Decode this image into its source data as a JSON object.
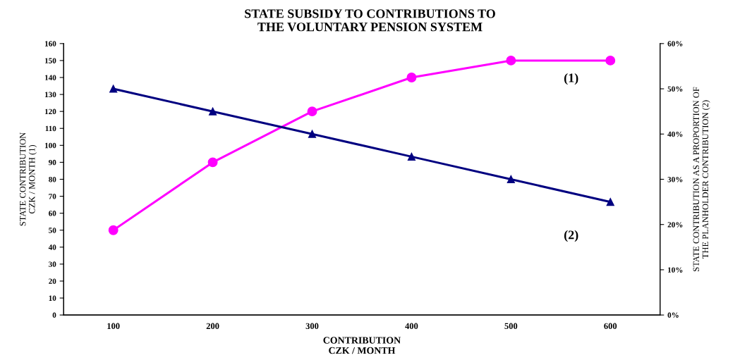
{
  "chart_data": {
    "type": "line",
    "title": "STATE SUBSIDY TO CONTRIBUTIONS TO\nTHE VOLUNTARY PENSION SYSTEM",
    "xlabel": "CONTRIBUTION\nCZK / MONTH",
    "ylabel": "STATE CONTRIBUTION\nCZK / MONTH (1)",
    "y2label": "STATE CONTRIBUTION AS A PROPORTION OF\nTHE PLANHOLDER CONTRIBUTION (2)",
    "categories": [
      "100",
      "200",
      "300",
      "400",
      "500",
      "600"
    ],
    "series": [
      {
        "name": "(1)",
        "color": "#ff00ff",
        "marker": "circle",
        "values": [
          50,
          90,
          120,
          140,
          150,
          150
        ]
      },
      {
        "name": "(2)",
        "color": "#000080",
        "marker": "triangle",
        "axis": "y2",
        "values": [
          50,
          45,
          40,
          35,
          30,
          25
        ]
      }
    ],
    "ylim": [
      0,
      160
    ],
    "yticks": [
      0,
      10,
      20,
      30,
      40,
      50,
      60,
      70,
      80,
      90,
      100,
      110,
      120,
      130,
      140,
      150,
      160
    ],
    "y2lim": [
      0,
      60
    ],
    "y2ticks": [
      {
        "value": 0,
        "label": "0%"
      },
      {
        "value": 10,
        "label": "10%"
      },
      {
        "value": 20,
        "label": "20%"
      },
      {
        "value": 30,
        "label": "30%"
      },
      {
        "value": 40,
        "label": "40%"
      },
      {
        "value": 50,
        "label": "50%"
      },
      {
        "value": 60,
        "label": "60%"
      }
    ],
    "grid": false,
    "legend": false,
    "line_style": "solid"
  }
}
